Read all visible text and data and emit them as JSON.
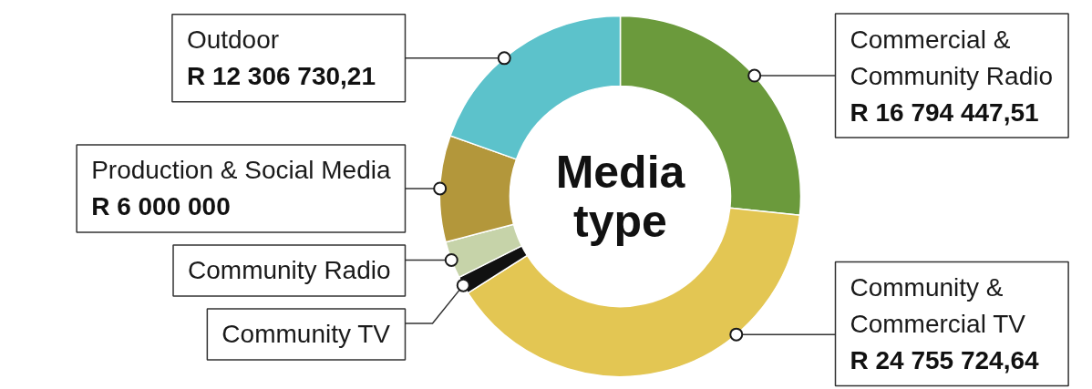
{
  "chart_data": {
    "type": "donut",
    "title": "Media type",
    "categories": [
      "Commercial & Community Radio",
      "Community & Commercial TV",
      "Community TV",
      "Community Radio",
      "Production & Social Media",
      "Outdoor"
    ],
    "values": [
      16794447.51,
      24755724.64,
      1000000,
      2100000,
      6000000,
      12306730.21
    ],
    "colors": [
      "#6b9a3c",
      "#e3c653",
      "#111111",
      "#c6d3a9",
      "#b3973b",
      "#5cc2cb"
    ],
    "value_labels": [
      "R 16 794 447,51",
      "R 24 755 724,64",
      null,
      null,
      "R 6 000 000",
      "R 12 306 730,21"
    ]
  }
}
